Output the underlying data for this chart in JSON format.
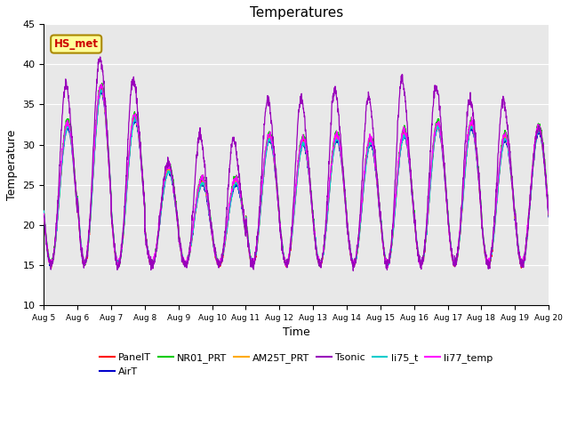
{
  "title": "Temperatures",
  "xlabel": "Time",
  "ylabel": "Temperature",
  "ylim": [
    10,
    45
  ],
  "tick_labels": [
    "Aug 5",
    "Aug 6",
    "Aug 7",
    "Aug 8",
    "Aug 9",
    "Aug 10",
    "Aug 11",
    "Aug 12",
    "Aug 13",
    "Aug 14",
    "Aug 15",
    "Aug 16",
    "Aug 17",
    "Aug 18",
    "Aug 19",
    "Aug 20"
  ],
  "series_names": [
    "PanelT",
    "AirT",
    "NR01_PRT",
    "AM25T_PRT",
    "Tsonic",
    "li75_t",
    "li77_temp"
  ],
  "series_colors": [
    "#ff0000",
    "#0000cc",
    "#00cc00",
    "#ffaa00",
    "#9900bb",
    "#00cccc",
    "#ff00ff"
  ],
  "annotation_text": "HS_met",
  "annotation_color": "#cc0000",
  "annotation_bg": "#ffff99",
  "annotation_border": "#aa8800",
  "bg_color": "#e8e8e8",
  "grid_color": "#ffffff",
  "title_fontsize": 11,
  "legend_fontsize": 8,
  "cluster_maxes": [
    32.5,
    37.0,
    33.5,
    27.0,
    25.5,
    25.5,
    31.0,
    30.5,
    31.0,
    30.5,
    31.5,
    32.5,
    32.5,
    31.0,
    32.0
  ],
  "tsonic_maxes": [
    38.5,
    41.8,
    39.2,
    28.0,
    32.0,
    31.5,
    36.5,
    36.8,
    38.0,
    37.0,
    39.5,
    38.5,
    36.5,
    36.5,
    32.0
  ],
  "base_min": 15.0,
  "tsonic_base": 15.5
}
